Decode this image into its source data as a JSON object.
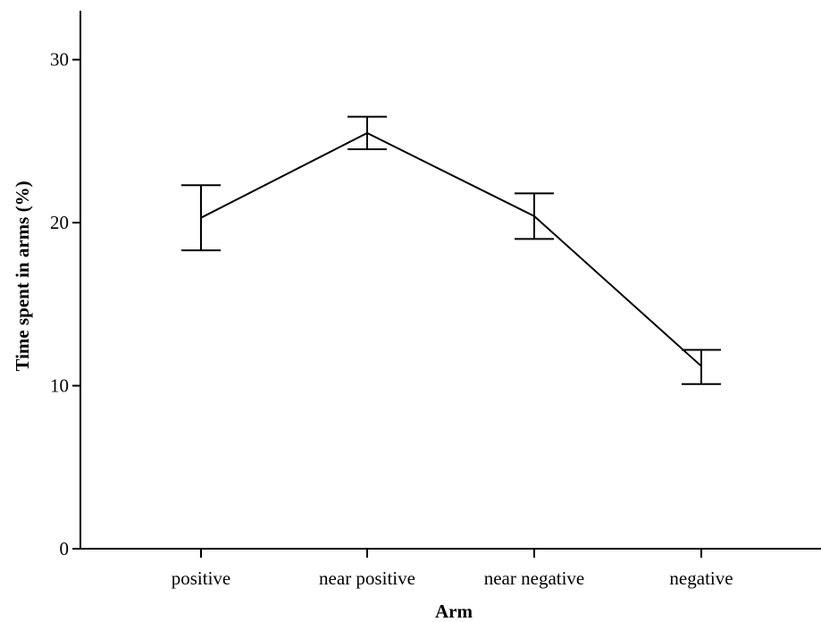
{
  "chart_data": {
    "type": "line",
    "title": "",
    "xlabel": "Arm",
    "ylabel": "Time spent in arms (%)",
    "categories": [
      "positive",
      "near positive",
      "near negative",
      "negative"
    ],
    "y_ticks": [
      0,
      10,
      20,
      30
    ],
    "ylim": [
      0,
      33
    ],
    "series": [
      {
        "values": [
          20.3,
          25.5,
          20.4,
          11.2
        ],
        "error_upper": [
          22.3,
          26.5,
          21.8,
          12.2
        ],
        "error_lower": [
          18.3,
          24.5,
          19.0,
          10.1
        ]
      }
    ],
    "grid": false,
    "legend": "none",
    "line_color": "#000000"
  }
}
